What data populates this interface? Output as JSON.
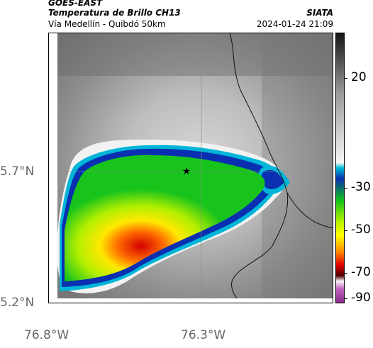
{
  "header": {
    "satellite": "GOES-EAST",
    "product": "Temperatura de Brillo CH13",
    "location": "Vía Medellín - Quibdó 50km",
    "organization": "SIATA",
    "timestamp": "2024-01-24 21:09"
  },
  "axes": {
    "lat_labels": [
      "5.7°N",
      "5.2°N"
    ],
    "lon_labels": [
      "76.8°W",
      "76.3°W"
    ]
  },
  "colorbar": {
    "labels": [
      "20",
      "-30",
      "-50",
      "-70",
      "-90"
    ],
    "colors": {
      "top_dark": "#141414",
      "gray_mid": "#9a9a9a",
      "light": "#f5f5f5",
      "cyan": "#00bcd4",
      "blue": "#0a2fb0",
      "green": "#10c21a",
      "lime": "#b6f000",
      "yellow": "#ffff00",
      "orange": "#ff8c00",
      "red": "#e00000",
      "dark_red": "#500000",
      "pink": "#c060c0",
      "magenta": "#8a2a8a"
    }
  },
  "map": {
    "marker_icon": "star-icon"
  }
}
